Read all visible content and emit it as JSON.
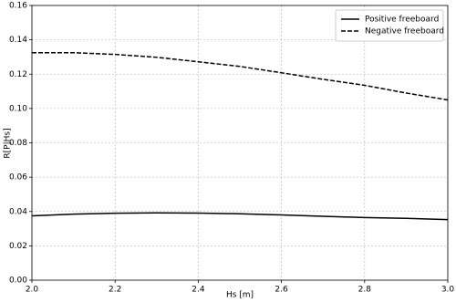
{
  "chart_data": {
    "type": "line",
    "xlabel": "Hs [m]",
    "ylabel": "R[P|Hs]",
    "x": [
      2.0,
      2.1,
      2.2,
      2.3,
      2.4,
      2.5,
      2.6,
      2.7,
      2.8,
      2.9,
      3.0
    ],
    "series": [
      {
        "name": "Positive freeboard",
        "color": "#000000",
        "dash": false,
        "values": [
          0.0375,
          0.0385,
          0.039,
          0.0392,
          0.0391,
          0.0387,
          0.038,
          0.0372,
          0.0365,
          0.036,
          0.0353
        ]
      },
      {
        "name": "Negative freeboard",
        "color": "#000000",
        "dash": true,
        "values": [
          0.1325,
          0.1325,
          0.1315,
          0.1298,
          0.1272,
          0.1245,
          0.1208,
          0.117,
          0.1135,
          0.109,
          0.105
        ]
      }
    ],
    "xlim": [
      2.0,
      3.0
    ],
    "xticks": [
      {
        "value": 2.0,
        "label": "2.0"
      },
      {
        "value": 2.2,
        "label": "2.2"
      },
      {
        "value": 2.4,
        "label": "2.4"
      },
      {
        "value": 2.6,
        "label": "2.6"
      },
      {
        "value": 2.8,
        "label": "2.8"
      },
      {
        "value": 3.0,
        "label": "3.0"
      }
    ],
    "ylim": [
      0,
      0.16
    ],
    "yticks": [
      {
        "value": 0,
        "label": "0.00"
      },
      {
        "value": 0.02,
        "label": "0.02"
      },
      {
        "value": 0.04,
        "label": "0.04"
      },
      {
        "value": 0.06,
        "label": "0.06"
      },
      {
        "value": 0.08,
        "label": "0.08"
      },
      {
        "value": 0.1,
        "label": "0.10"
      },
      {
        "value": 0.12,
        "label": "0.12"
      },
      {
        "value": 0.14,
        "label": "0.14"
      },
      {
        "value": 0.16,
        "label": "0.16"
      }
    ],
    "grid": true,
    "legend": "upper right"
  }
}
